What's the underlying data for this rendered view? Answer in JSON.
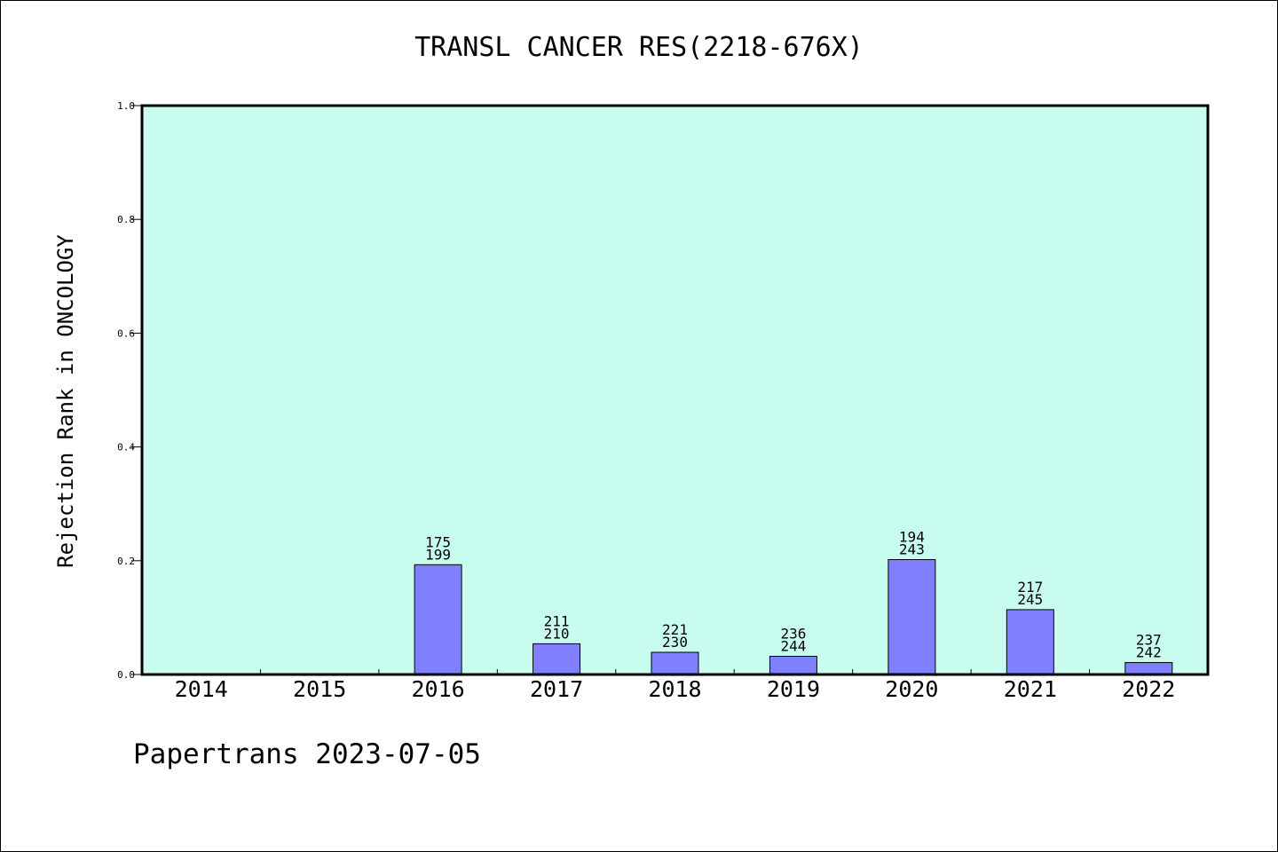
{
  "footer": {
    "note": "Papertrans 2023-07-05"
  },
  "colors": {
    "plot_background": "#c8fcee",
    "bar_fill": "#8080ff",
    "axis": "#000000"
  },
  "chart_data": {
    "type": "bar",
    "title": "TRANSL CANCER RES(2218-676X)",
    "ylabel": "Rejection Rank in ONCOLOGY",
    "xlabel": "",
    "ylim": [
      0,
      1.0
    ],
    "yticks": [
      "0.0",
      "0.2",
      "0.4",
      "0.6",
      "0.8",
      "1.0"
    ],
    "grid": false,
    "categories": [
      "2014",
      "2015",
      "2016",
      "2017",
      "2018",
      "2019",
      "2020",
      "2021",
      "2022"
    ],
    "values": [
      0,
      0,
      0.193,
      0.054,
      0.039,
      0.032,
      0.202,
      0.114,
      0.021
    ],
    "labels_top": [
      "",
      "",
      "175",
      "211",
      "221",
      "236",
      "194",
      "217",
      "237"
    ],
    "labels_bottom": [
      "",
      "",
      "199",
      "210",
      "230",
      "244",
      "243",
      "245",
      "242"
    ]
  }
}
